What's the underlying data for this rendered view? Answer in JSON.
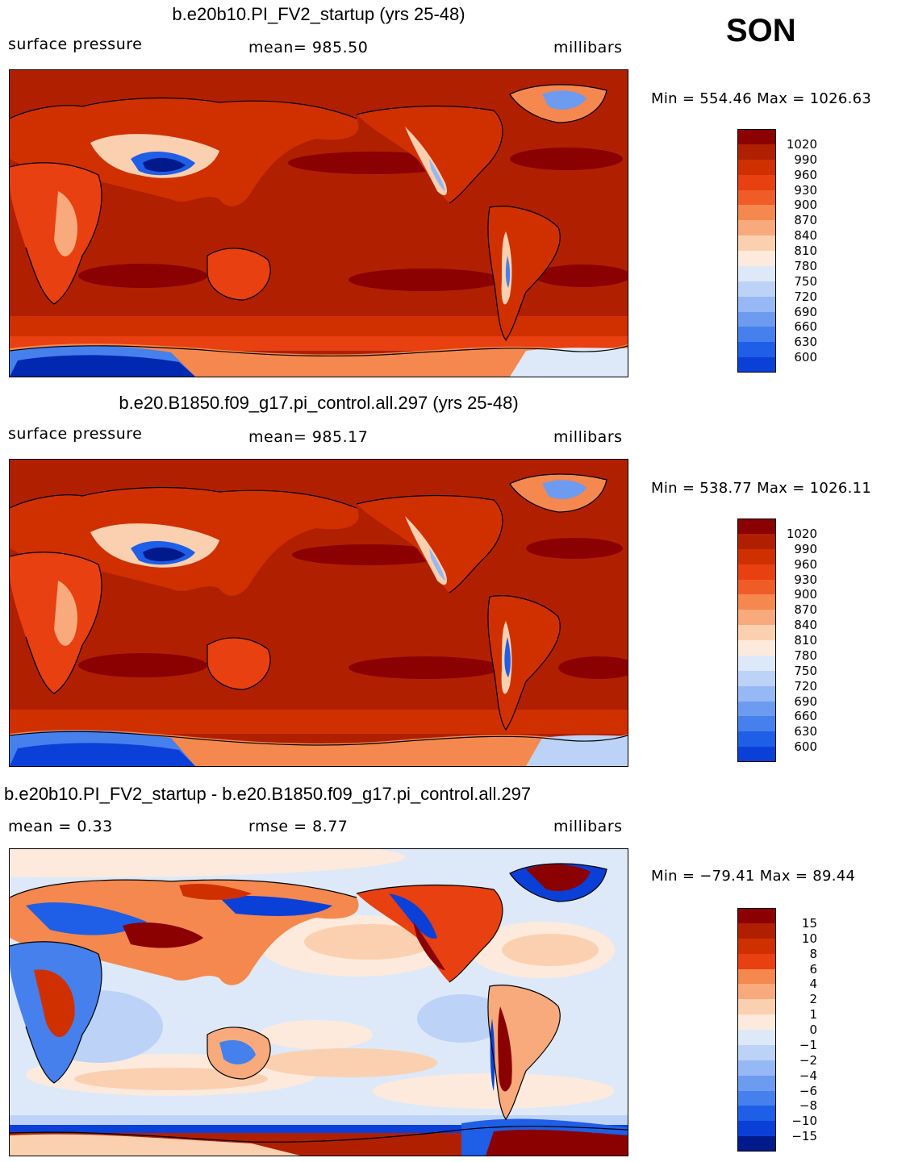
{
  "season": "SON",
  "colors": {
    "abs": [
      "#8b0000",
      "#b02000",
      "#d03000",
      "#e84010",
      "#f05c28",
      "#f4884e",
      "#f8aa7c",
      "#fbd0b0",
      "#fdeadc",
      "#dde9f8",
      "#bcd2f6",
      "#96b8f4",
      "#6d9bf0",
      "#4680ec",
      "#1f5ee6",
      "#0a40d8",
      "#0028b0",
      "#001a8c"
    ],
    "diff": [
      "#8b0000",
      "#b02000",
      "#d03000",
      "#e84010",
      "#f4884e",
      "#f8aa7c",
      "#fbd0b0",
      "#fdeadc",
      "#dde9f8",
      "#bcd2f6",
      "#96b8f4",
      "#6d9bf0",
      "#4680ec",
      "#1f5ee6",
      "#0a40d8",
      "#001a8c"
    ]
  },
  "panels": [
    {
      "title": "b.e20b10.PI_FV2_startup (yrs 25-48)",
      "left": "surface pressure",
      "center": "mean=  985.50",
      "right": "millibars",
      "minmax": "Min  =  554.46  Max  =  1026.63",
      "ticks": [
        "1020",
        "990",
        "960",
        "930",
        "900",
        "870",
        "840",
        "810",
        "780",
        "750",
        "720",
        "690",
        "660",
        "630",
        "600"
      ]
    },
    {
      "title": "b.e20.B1850.f09_g17.pi_control.all.297 (yrs 25-48)",
      "left": "surface pressure",
      "center": "mean=  985.17",
      "right": "millibars",
      "minmax": "Min  =  538.77  Max  =  1026.11",
      "ticks": [
        "1020",
        "990",
        "960",
        "930",
        "900",
        "870",
        "840",
        "810",
        "780",
        "750",
        "720",
        "690",
        "660",
        "630",
        "600"
      ]
    },
    {
      "title": "b.e20b10.PI_FV2_startup - b.e20.B1850.f09_g17.pi_control.all.297",
      "left": "mean  =     0.33",
      "center": "rmse  =     8.77",
      "right": "millibars",
      "minmax": "Min  =  −79.41  Max  =    89.44",
      "ticks": [
        "15",
        "10",
        "8",
        "6",
        "4",
        "2",
        "1",
        "0",
        "−1",
        "−2",
        "−4",
        "−6",
        "−8",
        "−10",
        "−15"
      ]
    }
  ]
}
